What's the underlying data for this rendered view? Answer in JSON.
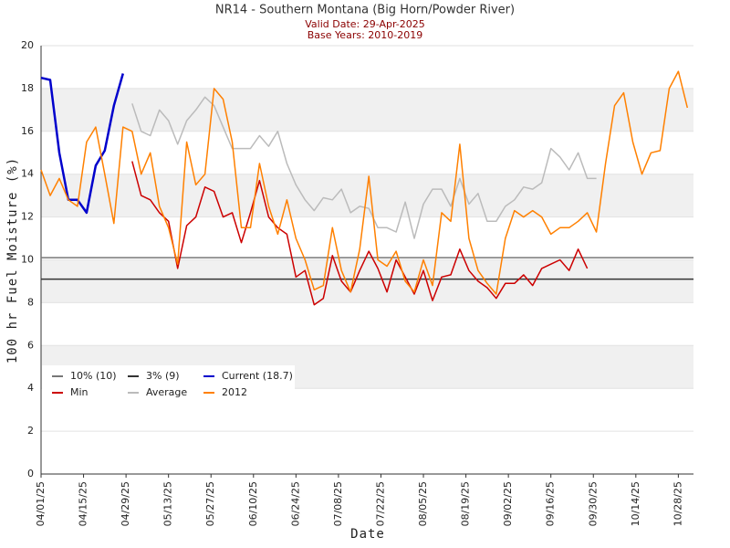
{
  "chart_data": {
    "type": "line",
    "title": "NR14 - Southern Montana (Big Horn/Powder River)",
    "subtitle": [
      "Valid Date: 29-Apr-2025",
      "Base Years: 2010-2019"
    ],
    "x_label": "Date",
    "y_label": "100 hr Fuel Moisture (%)",
    "x": [
      "2025-04-01",
      "2025-04-04",
      "2025-04-07",
      "2025-04-10",
      "2025-04-13",
      "2025-04-16",
      "2025-04-19",
      "2025-04-22",
      "2025-04-25",
      "2025-04-28",
      "2025-05-01",
      "2025-05-04",
      "2025-05-07",
      "2025-05-10",
      "2025-05-13",
      "2025-05-16",
      "2025-05-19",
      "2025-05-22",
      "2025-05-25",
      "2025-05-28",
      "2025-05-31",
      "2025-06-03",
      "2025-06-06",
      "2025-06-09",
      "2025-06-12",
      "2025-06-15",
      "2025-06-18",
      "2025-06-21",
      "2025-06-24",
      "2025-06-27",
      "2025-06-30",
      "2025-07-03",
      "2025-07-06",
      "2025-07-09",
      "2025-07-12",
      "2025-07-15",
      "2025-07-18",
      "2025-07-21",
      "2025-07-24",
      "2025-07-27",
      "2025-07-30",
      "2025-08-02",
      "2025-08-05",
      "2025-08-08",
      "2025-08-11",
      "2025-08-14",
      "2025-08-17",
      "2025-08-20",
      "2025-08-23",
      "2025-08-26",
      "2025-08-29",
      "2025-09-01",
      "2025-09-04",
      "2025-09-07",
      "2025-09-10",
      "2025-09-13",
      "2025-09-16",
      "2025-09-19",
      "2025-09-22",
      "2025-09-25",
      "2025-09-28",
      "2025-10-01",
      "2025-10-04",
      "2025-10-07",
      "2025-10-10",
      "2025-10-13",
      "2025-10-16",
      "2025-10-19",
      "2025-10-22",
      "2025-10-25",
      "2025-10-28",
      "2025-10-31"
    ],
    "reference_lines": [
      {
        "name": "10% (10)",
        "value": 10.1,
        "color": "#777777"
      },
      {
        "name": "3% (9)",
        "value": 9.1,
        "color": "#333333"
      }
    ],
    "series": [
      {
        "name": "Current (18.7)",
        "color": "#0000cc",
        "width": 2.5,
        "values": [
          18.5,
          18.4,
          15,
          12.8,
          12.8,
          12.2,
          14.4,
          15.1,
          17.2,
          18.7,
          null,
          null,
          null,
          null,
          null,
          null,
          null,
          null,
          null,
          null,
          null,
          null,
          null,
          null,
          null,
          null,
          null,
          null,
          null,
          null,
          null,
          null,
          null,
          null,
          null,
          null,
          null,
          null,
          null,
          null,
          null,
          null,
          null,
          null,
          null,
          null,
          null,
          null,
          null,
          null,
          null,
          null,
          null,
          null,
          null,
          null,
          null,
          null,
          null,
          null,
          null,
          null,
          null,
          null,
          null,
          null,
          null,
          null,
          null,
          null,
          null,
          null
        ]
      },
      {
        "name": "Min",
        "color": "#cc0000",
        "width": 1.5,
        "values": [
          null,
          null,
          null,
          null,
          null,
          null,
          null,
          null,
          null,
          null,
          14.6,
          13,
          12.8,
          12.2,
          11.8,
          9.6,
          11.6,
          12,
          13.4,
          13.2,
          12,
          12.2,
          10.8,
          12.2,
          13.7,
          12,
          11.5,
          11.2,
          9.2,
          9.5,
          7.9,
          8.2,
          10.2,
          9,
          8.5,
          9.5,
          10.4,
          9.6,
          8.5,
          10,
          9.2,
          8.4,
          9.5,
          8.1,
          9.2,
          9.3,
          10.5,
          9.5,
          9,
          8.7,
          8.2,
          8.9,
          8.9,
          9.3,
          8.8,
          9.6,
          9.8,
          10,
          9.5,
          10.5,
          9.6,
          null,
          null,
          null,
          null,
          null,
          null,
          null,
          null,
          null,
          null,
          null
        ]
      },
      {
        "name": "Average",
        "color": "#bbbbbb",
        "width": 1.5,
        "values": [
          null,
          null,
          null,
          null,
          null,
          null,
          null,
          null,
          null,
          null,
          17.3,
          16,
          15.8,
          17,
          16.5,
          15.4,
          16.5,
          17,
          17.6,
          17.2,
          16.2,
          15.2,
          15.2,
          15.2,
          15.8,
          15.3,
          16,
          14.5,
          13.5,
          12.8,
          12.3,
          12.9,
          12.8,
          13.3,
          12.2,
          12.5,
          12.4,
          11.5,
          11.5,
          11.3,
          12.7,
          11,
          12.6,
          13.3,
          13.3,
          12.5,
          13.8,
          12.6,
          13.1,
          11.8,
          11.8,
          12.5,
          12.8,
          13.4,
          13.3,
          13.6,
          15.2,
          14.8,
          14.2,
          15,
          13.8,
          13.8,
          null,
          null,
          null,
          null,
          null,
          null,
          null,
          null,
          null,
          null
        ]
      },
      {
        "name": "2012",
        "color": "#ff8000",
        "width": 1.5,
        "values": [
          14.2,
          13,
          13.8,
          12.8,
          12.5,
          15.5,
          16.2,
          14,
          11.7,
          16.2,
          16,
          14,
          15,
          12.5,
          11.5,
          9.8,
          15.5,
          13.5,
          14,
          18,
          17.5,
          15.5,
          11.5,
          11.5,
          14.5,
          12.5,
          11.2,
          12.8,
          11,
          10,
          8.6,
          8.8,
          11.5,
          9.5,
          8.5,
          10.5,
          13.9,
          10,
          9.7,
          10.4,
          9,
          8.5,
          10,
          8.8,
          12.2,
          11.8,
          15.4,
          11,
          9.5,
          8.9,
          8.4,
          11,
          12.3,
          12,
          12.3,
          12,
          11.2,
          11.5,
          11.5,
          11.8,
          12.2,
          11.3,
          14.5,
          17.2,
          17.8,
          15.5,
          14,
          15,
          15.1,
          18,
          18.8,
          17.1
        ]
      }
    ],
    "xlim": [
      "2025-04-01",
      "2025-11-02"
    ],
    "xticks": [
      {
        "value": "2025-04-01",
        "label": "04/01/25"
      },
      {
        "value": "2025-04-15",
        "label": "04/15/25"
      },
      {
        "value": "2025-04-29",
        "label": "04/29/25"
      },
      {
        "value": "2025-05-13",
        "label": "05/13/25"
      },
      {
        "value": "2025-05-27",
        "label": "05/27/25"
      },
      {
        "value": "2025-06-10",
        "label": "06/10/25"
      },
      {
        "value": "2025-06-24",
        "label": "06/24/25"
      },
      {
        "value": "2025-07-08",
        "label": "07/08/25"
      },
      {
        "value": "2025-07-22",
        "label": "07/22/25"
      },
      {
        "value": "2025-08-05",
        "label": "08/05/25"
      },
      {
        "value": "2025-08-19",
        "label": "08/19/25"
      },
      {
        "value": "2025-09-02",
        "label": "09/02/25"
      },
      {
        "value": "2025-09-16",
        "label": "09/16/25"
      },
      {
        "value": "2025-09-30",
        "label": "09/30/25"
      },
      {
        "value": "2025-10-14",
        "label": "10/14/25"
      },
      {
        "value": "2025-10-28",
        "label": "10/28/25"
      }
    ],
    "ylim": [
      0,
      20
    ],
    "yticks": [
      0,
      2,
      4,
      6,
      8,
      10,
      12,
      14,
      16,
      18,
      20
    ],
    "grid": true,
    "banded_grid": true,
    "legend": "lower left"
  }
}
